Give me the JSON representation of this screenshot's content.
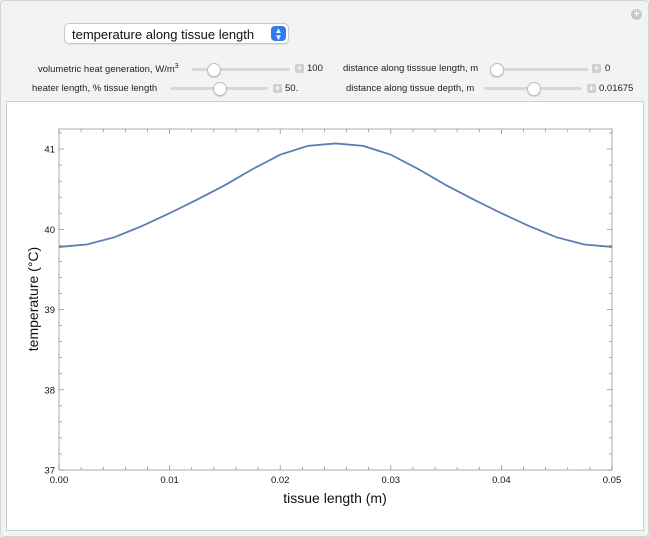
{
  "dropdown": {
    "selected": "temperature along tissue length"
  },
  "controls": {
    "heat_generation": {
      "label": "volumetric heat generation, W/m",
      "label_sup": "3",
      "value": "100",
      "fraction": 0.18
    },
    "heater_length": {
      "label": "heater length, % tissue length",
      "value": "50.",
      "fraction": 0.5
    },
    "dist_length": {
      "label": "distance along tisssue length, m",
      "value": "0",
      "fraction": 0.0
    },
    "dist_depth": {
      "label": "distance along tissue depth, m",
      "value": "0.01675",
      "fraction": 0.5
    }
  },
  "chart_data": {
    "type": "line",
    "title": "",
    "xlabel": "tissue length (m)",
    "ylabel": "temperature (°C)",
    "xlim": [
      0,
      0.05
    ],
    "ylim": [
      37,
      41.25
    ],
    "xticks": [
      "0.00",
      "0.01",
      "0.02",
      "0.03",
      "0.04",
      "0.05"
    ],
    "yticks": [
      "37",
      "38",
      "39",
      "40",
      "41"
    ],
    "line_color": "#5a7db3",
    "series": [
      {
        "x": [
          0,
          0.0025,
          0.005,
          0.0075,
          0.01,
          0.0125,
          0.015,
          0.0175,
          0.02,
          0.0225,
          0.025,
          0.0275,
          0.03,
          0.0325,
          0.035,
          0.0375,
          0.04,
          0.0425,
          0.045,
          0.0475,
          0.05
        ],
        "y": [
          39.78,
          39.81,
          39.9,
          40.04,
          40.2,
          40.37,
          40.55,
          40.75,
          40.93,
          41.04,
          41.07,
          41.04,
          40.93,
          40.75,
          40.55,
          40.37,
          40.2,
          40.04,
          39.9,
          39.81,
          39.78
        ]
      }
    ]
  }
}
